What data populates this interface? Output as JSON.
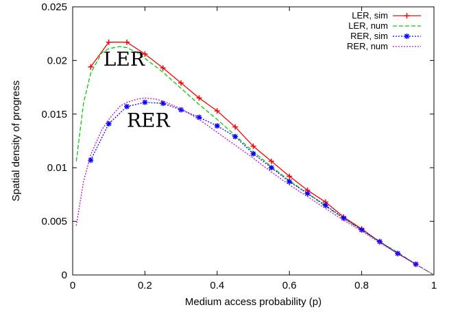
{
  "chart_data": {
    "type": "line",
    "title": "",
    "xlabel": "Medium access probability (p)",
    "ylabel": "Spatial density of progress",
    "xlim": [
      0,
      1
    ],
    "ylim": [
      0,
      0.025
    ],
    "x_ticks": [
      "0",
      "0.2",
      "0.4",
      "0.6",
      "0.8",
      "1"
    ],
    "y_ticks": [
      "0",
      "0.005",
      "0.01",
      "0.015",
      "0.02",
      "0.025"
    ],
    "grid": false,
    "legend_position": "top-right",
    "annotations": [
      {
        "text": "LER",
        "x": 0.085,
        "y": 0.0195
      },
      {
        "text": "RER",
        "x": 0.15,
        "y": 0.0138
      }
    ],
    "series": [
      {
        "name": "LER, sim",
        "color": "#ff0000",
        "style": "solid",
        "marker": "plus",
        "x": [
          0.05,
          0.1,
          0.15,
          0.2,
          0.25,
          0.3,
          0.35,
          0.4,
          0.45,
          0.5,
          0.55,
          0.6,
          0.65,
          0.7,
          0.75,
          0.8,
          0.85,
          0.9,
          0.95
        ],
        "y": [
          0.0194,
          0.0217,
          0.0217,
          0.0206,
          0.0193,
          0.0179,
          0.0165,
          0.0153,
          0.0138,
          0.012,
          0.0106,
          0.0092,
          0.0079,
          0.0068,
          0.0054,
          0.0043,
          0.0031,
          0.002,
          0.001
        ]
      },
      {
        "name": "LER, num",
        "color": "#00cc00",
        "style": "dashed",
        "marker": "none",
        "x": [
          0.01,
          0.03,
          0.05,
          0.08,
          0.1,
          0.13,
          0.15,
          0.18,
          0.2,
          0.25,
          0.3,
          0.35,
          0.4,
          0.45,
          0.5,
          0.55,
          0.6,
          0.65,
          0.7,
          0.75,
          0.8,
          0.85,
          0.9,
          0.95,
          1.0
        ],
        "y": [
          0.0106,
          0.016,
          0.0188,
          0.0207,
          0.0211,
          0.0213,
          0.0212,
          0.0207,
          0.0202,
          0.0189,
          0.0174,
          0.0159,
          0.0145,
          0.013,
          0.0115,
          0.0101,
          0.0088,
          0.0076,
          0.0064,
          0.0053,
          0.0042,
          0.0031,
          0.0021,
          0.001,
          0.0
        ]
      },
      {
        "name": "RER, sim",
        "color": "#0000ff",
        "style": "dotted",
        "marker": "star",
        "x": [
          0.05,
          0.1,
          0.15,
          0.2,
          0.25,
          0.3,
          0.35,
          0.4,
          0.45,
          0.5,
          0.55,
          0.6,
          0.65,
          0.7,
          0.75,
          0.8,
          0.85,
          0.9,
          0.95
        ],
        "y": [
          0.0107,
          0.0141,
          0.0157,
          0.0161,
          0.016,
          0.0154,
          0.0147,
          0.0139,
          0.0129,
          0.0113,
          0.01,
          0.0087,
          0.0076,
          0.0065,
          0.0053,
          0.0042,
          0.0031,
          0.002,
          0.001
        ]
      },
      {
        "name": "RER, num",
        "color": "#cc00cc",
        "style": "dotted",
        "marker": "none",
        "x": [
          0.01,
          0.03,
          0.05,
          0.08,
          0.1,
          0.13,
          0.15,
          0.18,
          0.2,
          0.23,
          0.25,
          0.3,
          0.35,
          0.4,
          0.45,
          0.5,
          0.55,
          0.6,
          0.65,
          0.7,
          0.75,
          0.8,
          0.85,
          0.9,
          0.95,
          1.0
        ],
        "y": [
          0.0046,
          0.0087,
          0.0112,
          0.0135,
          0.0145,
          0.0157,
          0.0161,
          0.0164,
          0.0165,
          0.0164,
          0.0162,
          0.0155,
          0.0145,
          0.0133,
          0.0121,
          0.0109,
          0.0096,
          0.0084,
          0.0073,
          0.0062,
          0.0051,
          0.0041,
          0.003,
          0.002,
          0.001,
          0.0
        ]
      }
    ]
  }
}
